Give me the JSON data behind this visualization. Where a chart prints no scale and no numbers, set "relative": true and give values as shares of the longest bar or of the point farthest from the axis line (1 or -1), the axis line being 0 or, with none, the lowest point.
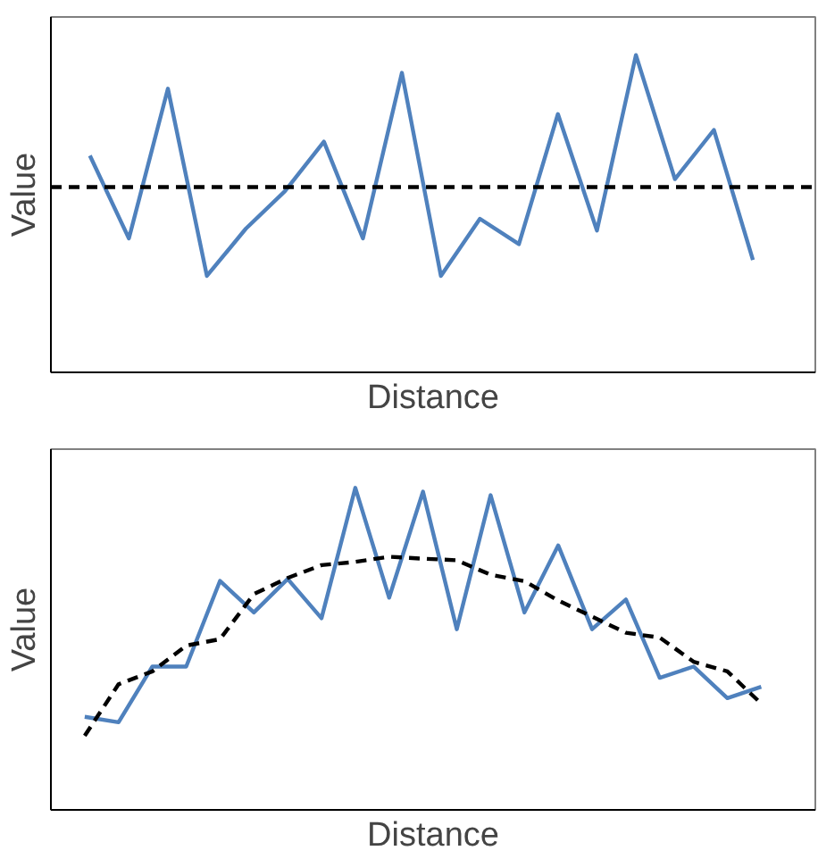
{
  "chart_data": [
    {
      "type": "line",
      "xlabel": "Distance",
      "ylabel": "Value",
      "relative": true,
      "tick_labels": false,
      "categories": [
        null,
        null,
        null,
        null,
        null,
        null,
        null,
        null,
        null,
        null,
        null,
        null,
        null,
        null,
        null,
        null,
        null,
        null
      ],
      "series": [
        {
          "color": "#4f81bd",
          "values": [
            0.683,
            0.422,
            0.894,
            0.304,
            0.453,
            0.571,
            0.727,
            0.422,
            0.944,
            0.304,
            0.484,
            0.404,
            0.814,
            0.447,
            1.0,
            0.609,
            0.764,
            0.354
          ]
        }
      ],
      "ref_lines": [
        {
          "axis": "y",
          "value": 0.584,
          "color": "#000000",
          "line_style": "dashed"
        }
      ]
    },
    {
      "type": "line",
      "xlabel": "Distance",
      "ylabel": "Value",
      "relative": true,
      "tick_labels": false,
      "categories": [
        null,
        null,
        null,
        null,
        null,
        null,
        null,
        null,
        null,
        null,
        null,
        null,
        null,
        null,
        null,
        null,
        null,
        null,
        null,
        null,
        null
      ],
      "series": [
        {
          "color": "#4f81bd",
          "values": [
            0.289,
            0.272,
            0.445,
            0.445,
            0.711,
            0.613,
            0.717,
            0.595,
            1.0,
            0.659,
            0.988,
            0.561,
            0.977,
            0.613,
            0.821,
            0.561,
            0.653,
            0.41,
            0.445,
            0.347,
            0.382
          ]
        },
        {
          "color": "#000000",
          "line_style": "dashed",
          "values": [
            0.23,
            0.39,
            0.43,
            0.51,
            0.53,
            0.67,
            0.72,
            0.76,
            0.77,
            0.786,
            0.78,
            0.775,
            0.73,
            0.71,
            0.65,
            0.6,
            0.55,
            0.535,
            0.46,
            0.43,
            0.33
          ]
        }
      ]
    }
  ]
}
